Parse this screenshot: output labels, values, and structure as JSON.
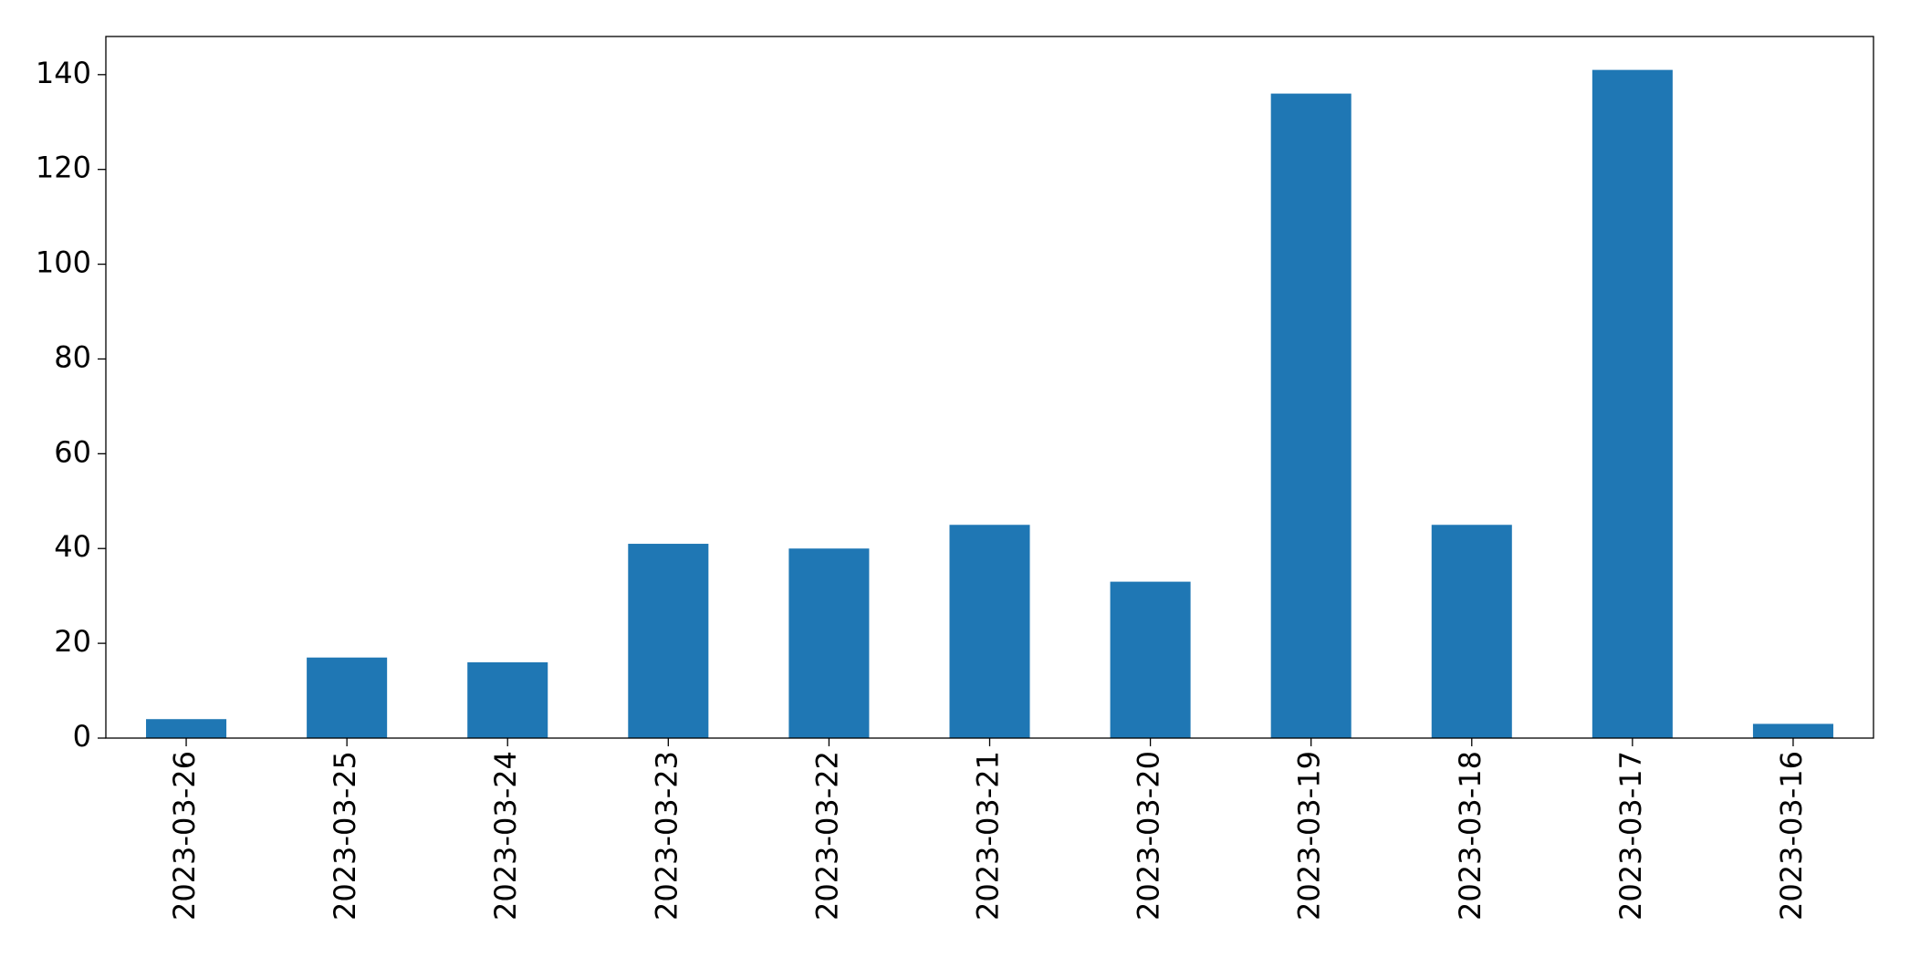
{
  "chart_data": {
    "type": "bar",
    "categories": [
      "2023-03-26",
      "2023-03-25",
      "2023-03-24",
      "2023-03-23",
      "2023-03-22",
      "2023-03-21",
      "2023-03-20",
      "2023-03-19",
      "2023-03-18",
      "2023-03-17",
      "2023-03-16"
    ],
    "values": [
      4,
      17,
      16,
      41,
      40,
      45,
      33,
      136,
      45,
      141,
      3
    ],
    "color": "#1f77b4",
    "ylim": [
      0,
      148.05
    ],
    "yticks": [
      0,
      20,
      40,
      60,
      80,
      100,
      120,
      140
    ],
    "grid": false
  }
}
